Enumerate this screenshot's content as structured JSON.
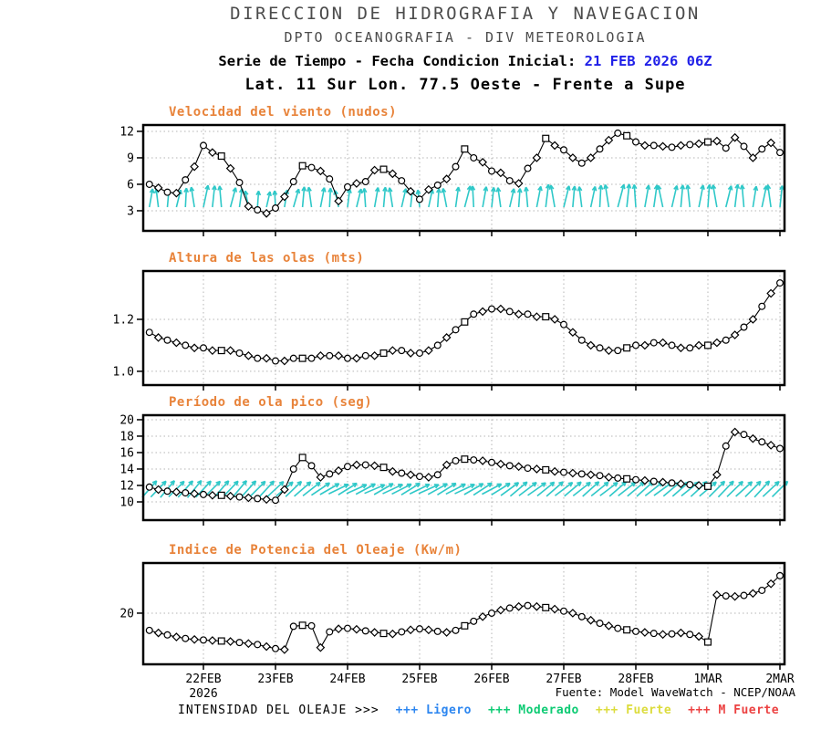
{
  "header": {
    "line1": "DIRECCION DE HIDROGRAFIA Y NAVEGACION",
    "line2": "DPTO OCEANOGRAFIA - DIV METEOROLOGIA",
    "line3_label": "Serie de Tiempo - Fecha Condicion Inicial:",
    "line3_date": "21 FEB 2026 06Z",
    "line4": "Lat. 11 Sur  Lon. 77.5 Oeste - Frente a Supe"
  },
  "footer": {
    "source": "Fuente: Model WaveWatch - NCEP/NOAA",
    "legend_label": "INTENSIDAD DEL OLEAJE >>>",
    "legend": [
      {
        "name": "ligero",
        "label": "+++ Ligero",
        "color": "#2c86f0"
      },
      {
        "name": "moderado",
        "label": "+++ Moderado",
        "color": "#0ecb74"
      },
      {
        "name": "fuerte",
        "label": "+++ Fuerte",
        "color": "#dcdc3c"
      },
      {
        "name": "m-fuerte",
        "label": "+++ M Fuerte",
        "color": "#ec4141"
      }
    ]
  },
  "x_axis": {
    "tick_hours": [
      24,
      48,
      72,
      96,
      120,
      144,
      168,
      192,
      216
    ],
    "tick_labels": [
      "22FEB",
      "23FEB",
      "24FEB",
      "25FEB",
      "26FEB",
      "27FEB",
      "28FEB",
      "1MAR",
      "2MAR"
    ],
    "year_label": "2026",
    "reference": "hours since 21 FEB 2026 00Z",
    "data_start_hour": 6,
    "data_step_hours": 3
  },
  "colors": {
    "accent_orange": "#e8833a",
    "arrow_cyan": "#2fc8c8",
    "grid_gray": "#b5b5b5",
    "date_blue": "#1f1fe8",
    "header_gray": "#4b4b4b"
  },
  "chart_data": [
    {
      "type": "line",
      "name": "wind-speed",
      "title": "Velocidad del viento (nudos)",
      "ylabel": "nudos",
      "ylim": [
        0.72,
        12.72
      ],
      "yticks": [
        3,
        6,
        9,
        12
      ],
      "ytick_labels": [
        "3",
        "6",
        "9",
        "12"
      ],
      "grid": true,
      "values": [
        6.0,
        5.6,
        5.1,
        5.0,
        6.5,
        8.0,
        10.4,
        9.6,
        9.2,
        7.8,
        6.2,
        3.5,
        3.1,
        2.7,
        3.3,
        4.6,
        6.3,
        8.1,
        7.9,
        7.5,
        6.6,
        4.1,
        5.7,
        6.1,
        6.3,
        7.6,
        7.7,
        7.2,
        6.4,
        5.2,
        4.3,
        5.4,
        5.9,
        6.6,
        8.0,
        10.0,
        9.0,
        8.5,
        7.5,
        7.3,
        6.4,
        6.1,
        7.8,
        9.0,
        11.2,
        10.4,
        9.9,
        9.0,
        8.4,
        9.0,
        10.0,
        11.0,
        11.8,
        11.5,
        10.8,
        10.4,
        10.4,
        10.3,
        10.2,
        10.4,
        10.5,
        10.6,
        10.8,
        10.9,
        10.1,
        11.3,
        10.3,
        9.0,
        10.0,
        10.7,
        9.6
      ],
      "arrow_angles_deg": [
        10,
        -7,
        5,
        14,
        3,
        -9,
        12,
        6,
        -5,
        15,
        8,
        -11,
        4,
        13,
        -3,
        9,
        16,
        5,
        -8,
        11,
        3,
        -12,
        7,
        14,
        -4,
        10,
        5,
        -9,
        13,
        6,
        -6,
        12,
        4,
        -11,
        8,
        15,
        -3,
        10,
        6,
        -8,
        13,
        4,
        -5,
        11,
        7,
        -10,
        14,
        5,
        -7,
        12,
        3,
        -9,
        15,
        6,
        -4,
        10,
        8,
        -12,
        13,
        5,
        -6,
        11,
        4,
        -10,
        14,
        7,
        -5,
        9,
        12,
        -8,
        6
      ]
    },
    {
      "type": "line",
      "name": "wave-height",
      "title": "Altura de las olas (mts)",
      "ylabel": "mts",
      "ylim": [
        0.947,
        1.386
      ],
      "yticks": [
        1.0,
        1.2
      ],
      "ytick_labels": [
        "1.0",
        "1.2"
      ],
      "grid": true,
      "values": [
        1.15,
        1.13,
        1.12,
        1.11,
        1.1,
        1.09,
        1.09,
        1.08,
        1.08,
        1.08,
        1.07,
        1.06,
        1.05,
        1.05,
        1.04,
        1.04,
        1.05,
        1.05,
        1.05,
        1.06,
        1.06,
        1.06,
        1.05,
        1.05,
        1.06,
        1.06,
        1.07,
        1.08,
        1.08,
        1.07,
        1.07,
        1.08,
        1.1,
        1.13,
        1.16,
        1.19,
        1.22,
        1.23,
        1.24,
        1.24,
        1.23,
        1.22,
        1.22,
        1.21,
        1.21,
        1.2,
        1.18,
        1.15,
        1.12,
        1.1,
        1.09,
        1.08,
        1.08,
        1.09,
        1.1,
        1.1,
        1.11,
        1.11,
        1.1,
        1.09,
        1.09,
        1.1,
        1.1,
        1.11,
        1.12,
        1.14,
        1.17,
        1.2,
        1.25,
        1.3,
        1.34
      ]
    },
    {
      "type": "line",
      "name": "peak-wave-period",
      "title": "Período de ola pico (seg)",
      "ylabel": "seg",
      "ylim": [
        7.78,
        20.55
      ],
      "yticks": [
        10,
        12,
        14,
        16,
        18,
        20
      ],
      "ytick_labels": [
        "10",
        "12",
        "14",
        "16",
        "18",
        "20"
      ],
      "grid": true,
      "values": [
        11.8,
        11.5,
        11.3,
        11.2,
        11.1,
        11.0,
        10.9,
        10.8,
        10.8,
        10.7,
        10.6,
        10.5,
        10.4,
        10.3,
        10.2,
        11.5,
        14.0,
        15.4,
        14.4,
        13.0,
        13.4,
        13.8,
        14.3,
        14.5,
        14.5,
        14.4,
        14.2,
        13.7,
        13.5,
        13.3,
        13.1,
        13.0,
        13.3,
        14.5,
        15.0,
        15.2,
        15.1,
        15.0,
        14.8,
        14.6,
        14.4,
        14.3,
        14.1,
        14.0,
        13.9,
        13.7,
        13.6,
        13.5,
        13.4,
        13.3,
        13.2,
        13.0,
        12.9,
        12.8,
        12.7,
        12.6,
        12.5,
        12.4,
        12.3,
        12.2,
        12.1,
        12.0,
        11.9,
        13.3,
        16.8,
        18.5,
        18.2,
        17.7,
        17.3,
        16.9,
        16.5
      ],
      "arrow_angles_deg": [
        41,
        44,
        40,
        45,
        42,
        39,
        43,
        45,
        41,
        44,
        40,
        42,
        45,
        43,
        47,
        50,
        46,
        49,
        52,
        56,
        60,
        64,
        58,
        66,
        62,
        67,
        60,
        65,
        63,
        58,
        64,
        66,
        61,
        58,
        63,
        65,
        60,
        57,
        62,
        58,
        54,
        50,
        53,
        55,
        51,
        49,
        53,
        50,
        52,
        48,
        51,
        53,
        49,
        52,
        50,
        48,
        52,
        54,
        50,
        49,
        51,
        47,
        50,
        45,
        44,
        46,
        48,
        45,
        43,
        47,
        45
      ]
    },
    {
      "type": "line",
      "name": "wave-power-index",
      "title": "Indice de Potencia del Oleaje (Kw/m)",
      "ylabel": "Kw/m",
      "ylim": [
        9.9,
        29.9
      ],
      "yticks": [
        20
      ],
      "ytick_labels": [
        "20"
      ],
      "grid": true,
      "values": [
        16.6,
        16.1,
        15.7,
        15.3,
        15.0,
        14.8,
        14.7,
        14.6,
        14.5,
        14.4,
        14.2,
        14.0,
        13.8,
        13.4,
        13.0,
        12.8,
        17.4,
        17.6,
        17.5,
        13.2,
        16.3,
        16.9,
        17.0,
        16.8,
        16.5,
        16.2,
        16.0,
        15.9,
        16.3,
        16.7,
        16.9,
        16.7,
        16.4,
        16.2,
        16.6,
        17.5,
        18.4,
        19.3,
        20.0,
        20.6,
        21.0,
        21.3,
        21.5,
        21.3,
        21.1,
        20.8,
        20.4,
        20.0,
        19.3,
        18.6,
        18.0,
        17.5,
        17.0,
        16.7,
        16.4,
        16.2,
        16.0,
        15.8,
        15.9,
        16.1,
        15.8,
        15.4,
        14.3,
        23.6,
        23.4,
        23.3,
        23.5,
        23.9,
        24.5,
        25.8,
        27.4
      ]
    }
  ]
}
